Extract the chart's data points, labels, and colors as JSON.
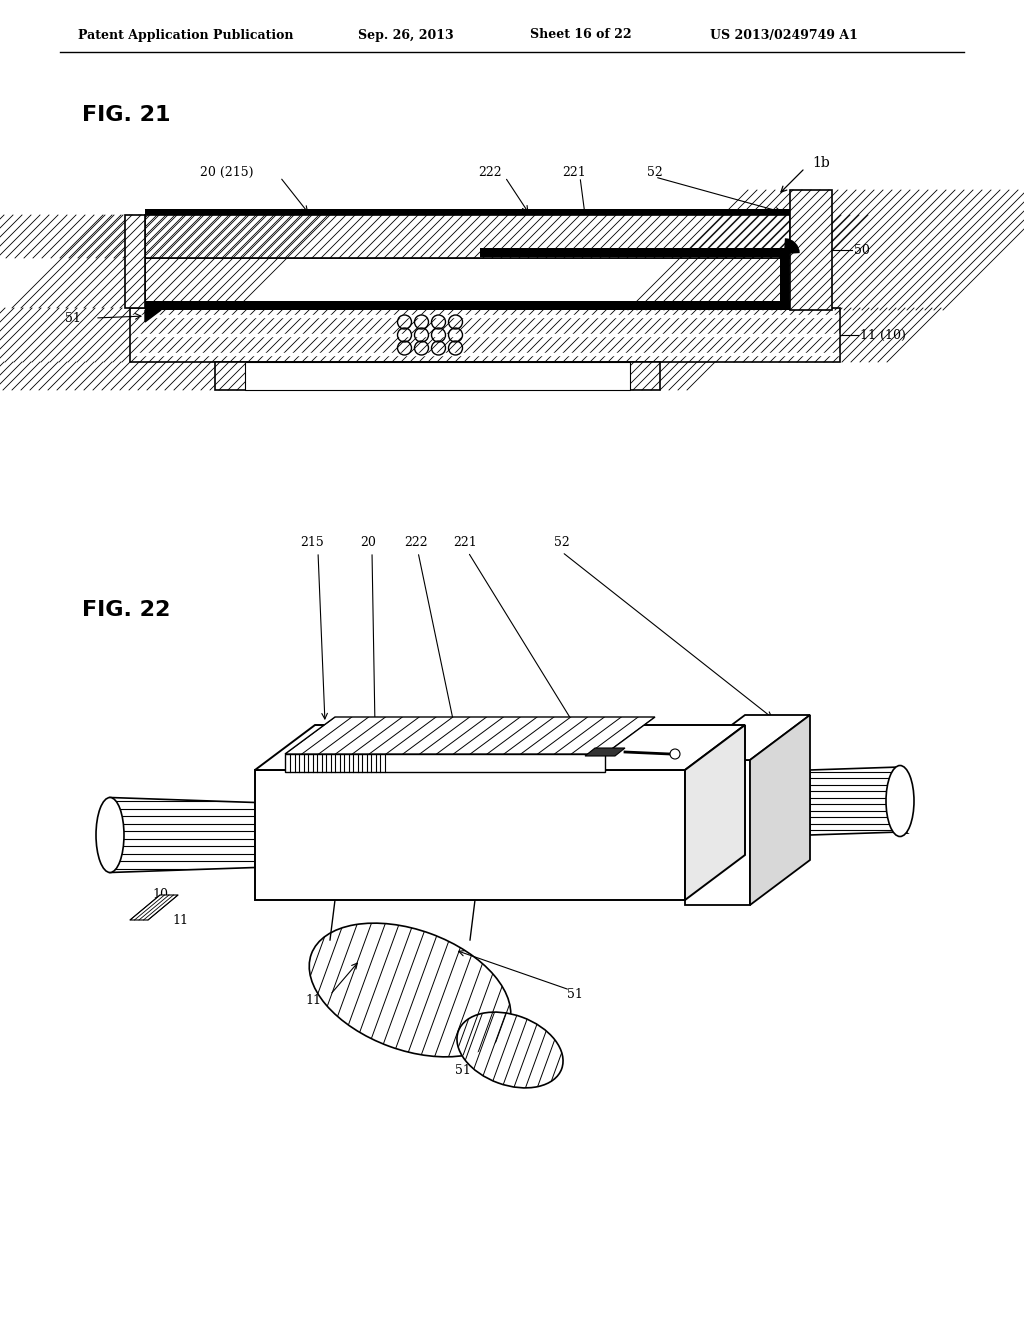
{
  "bg_color": "#ffffff",
  "header_text": "Patent Application Publication",
  "header_date": "Sep. 26, 2013",
  "header_sheet": "Sheet 16 of 22",
  "header_patent": "US 2013/0249749 A1",
  "fig21_label": "FIG. 21",
  "fig22_label": "FIG. 22",
  "label_1b": "1b",
  "fig21_labels": {
    "20_215": "20 (215)",
    "222": "222",
    "221": "221",
    "52": "52",
    "50": "50",
    "51": "51",
    "11_10": "11 (10)"
  },
  "fig22_labels": {
    "215": "215",
    "20": "20",
    "222": "222",
    "221": "221",
    "52": "52",
    "10": "10",
    "11": "11",
    "51": "51"
  }
}
